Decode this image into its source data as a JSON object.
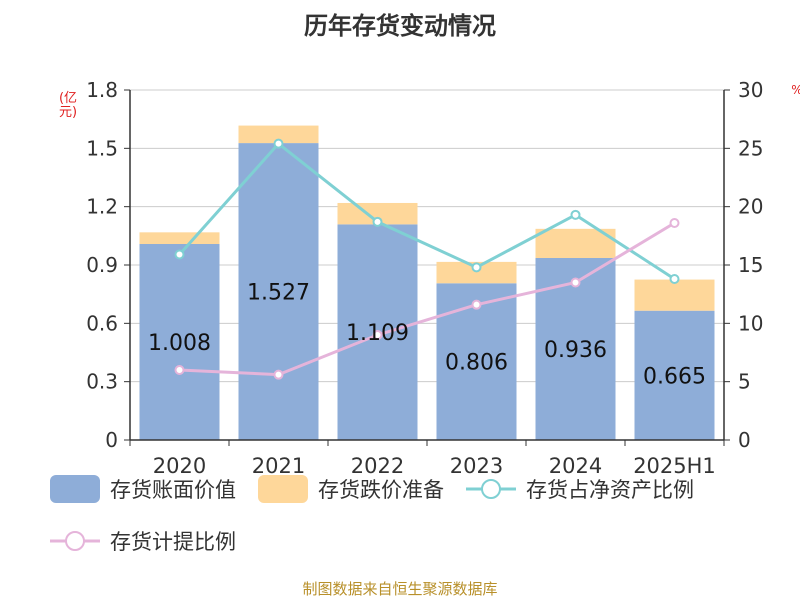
{
  "chart_data": {
    "type": "bar",
    "title": "历年存货变动情况",
    "ylabel_left": "(亿元)",
    "ylabel_right": "%",
    "categories": [
      "2020",
      "2021",
      "2022",
      "2023",
      "2024",
      "2025H1"
    ],
    "y_left": {
      "min": 0,
      "max": 1.8,
      "ticks": [
        "0",
        "0.3",
        "0.6",
        "0.9",
        "1.2",
        "1.5",
        "1.8"
      ]
    },
    "y_right": {
      "min": 0,
      "max": 30,
      "ticks": [
        "0",
        "5",
        "10",
        "15",
        "20",
        "25",
        "30"
      ]
    },
    "grid": true,
    "legend_position": "bottom",
    "series": [
      {
        "name": "存货账面价值",
        "kind": "bar",
        "axis": "left",
        "color": "#8eadd8",
        "values": [
          1.008,
          1.527,
          1.109,
          0.806,
          0.936,
          0.665
        ],
        "labels": [
          "1.008",
          "1.527",
          "1.109",
          "0.806",
          "0.936",
          "0.665"
        ]
      },
      {
        "name": "存货跌价准备",
        "kind": "bar-stacked",
        "axis": "left",
        "color": "#fed79a",
        "values": [
          0.06,
          0.09,
          0.11,
          0.11,
          0.15,
          0.16
        ]
      },
      {
        "name": "存货占净资产比例",
        "kind": "line",
        "axis": "right",
        "color": "#7fd0d3",
        "values": [
          15.9,
          25.4,
          18.7,
          14.8,
          19.3,
          13.8
        ]
      },
      {
        "name": "存货计提比例",
        "kind": "line",
        "axis": "right",
        "color": "#e5b4da",
        "values": [
          6.0,
          5.6,
          9.0,
          11.6,
          13.5,
          18.6
        ]
      }
    ],
    "source": "制图数据来自恒生聚源数据库"
  }
}
